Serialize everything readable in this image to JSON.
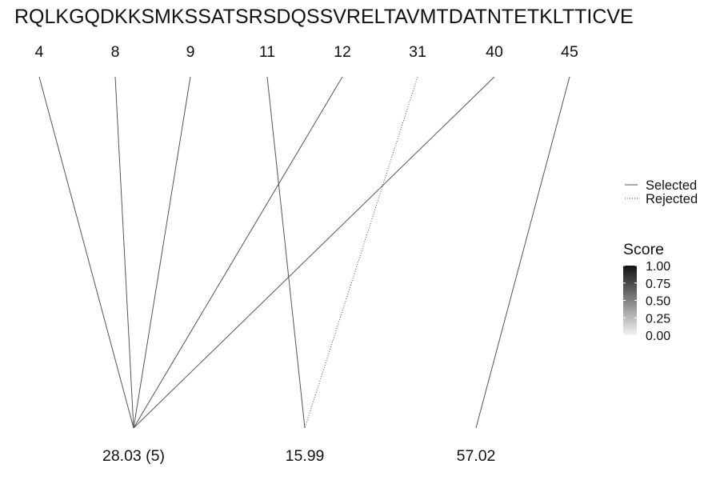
{
  "sequence": "RQLKGQDKKSMKSSATSRSDQSSVRELTAVMTDATNTETKLTTICVE",
  "positions": [
    "4",
    "8",
    "9",
    "11",
    "12",
    "31",
    "40",
    "45"
  ],
  "masses": [
    "28.03 (5)",
    "15.99",
    "57.02"
  ],
  "links": [
    {
      "from": "4",
      "to": "28.03 (5)",
      "status": "Selected",
      "score": 1.0
    },
    {
      "from": "8",
      "to": "28.03 (5)",
      "status": "Selected",
      "score": 1.0
    },
    {
      "from": "9",
      "to": "28.03 (5)",
      "status": "Selected",
      "score": 1.0
    },
    {
      "from": "12",
      "to": "28.03 (5)",
      "status": "Selected",
      "score": 1.0
    },
    {
      "from": "40",
      "to": "28.03 (5)",
      "status": "Selected",
      "score": 1.0
    },
    {
      "from": "11",
      "to": "15.99",
      "status": "Selected",
      "score": 1.0
    },
    {
      "from": "31",
      "to": "15.99",
      "status": "Rejected",
      "score": 1.0
    },
    {
      "from": "45",
      "to": "57.02",
      "status": "Selected",
      "score": 1.0
    }
  ],
  "legend": {
    "linetype": [
      {
        "label": "Selected",
        "style": "solid"
      },
      {
        "label": "Rejected",
        "style": "dotted"
      }
    ],
    "score_title": "Score",
    "score_ticks": [
      "1.00",
      "0.75",
      "0.50",
      "0.25",
      "0.00"
    ],
    "score_range": [
      0,
      1
    ],
    "gradient_colors": [
      "#111111",
      "#f4f4f4"
    ]
  },
  "colors": {
    "line": "#555555",
    "text": "#111111",
    "background": "#ffffff"
  }
}
